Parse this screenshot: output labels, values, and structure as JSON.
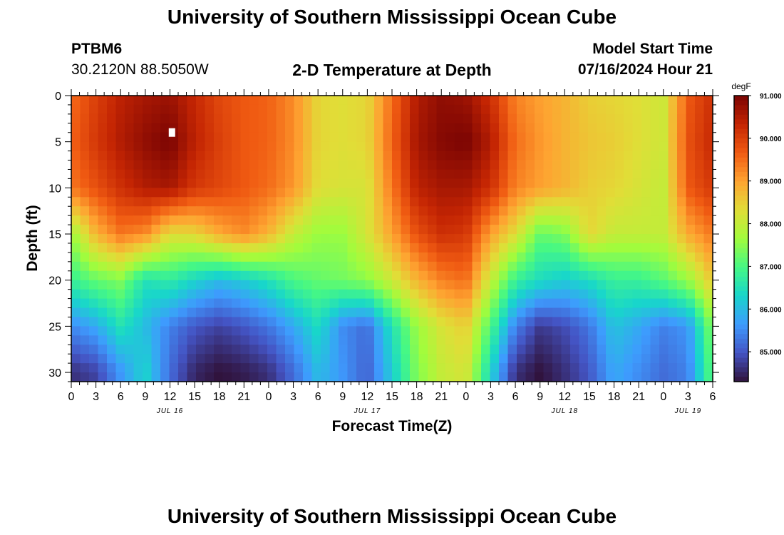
{
  "page": {
    "title_top": "University of Southern Mississippi Ocean Cube",
    "title_bottom": "University of Southern Mississippi Ocean Cube",
    "station_id": "PTBM6",
    "station_coords": "30.2120N  88.5050W",
    "plot_title": "2-D Temperature at Depth",
    "model_start_label": "Model Start Time",
    "model_start_value": "07/16/2024 Hour 21"
  },
  "chart_data": {
    "type": "heatmap",
    "title": "2-D Temperature at Depth",
    "xlabel": "Forecast Time(Z)",
    "ylabel": "Depth (ft)",
    "x_unit": "hours since 07/16/2024 00Z",
    "xlim": [
      0,
      78
    ],
    "ylim": [
      0,
      31
    ],
    "x_ticks": [
      0,
      3,
      6,
      9,
      12,
      15,
      18,
      21,
      24,
      27,
      30,
      33,
      36,
      39,
      42,
      45,
      48,
      51,
      54,
      57,
      60,
      63,
      66,
      69,
      72,
      75,
      78
    ],
    "x_tick_labels": [
      "0",
      "3",
      "6",
      "9",
      "12",
      "15",
      "18",
      "21",
      "0",
      "3",
      "6",
      "9",
      "12",
      "15",
      "18",
      "21",
      "0",
      "3",
      "6",
      "9",
      "12",
      "15",
      "18",
      "21",
      "0",
      "3",
      "6"
    ],
    "date_labels": [
      {
        "x": 12,
        "text": "JUL 16"
      },
      {
        "x": 36,
        "text": "JUL 17"
      },
      {
        "x": 60,
        "text": "JUL 18"
      },
      {
        "x": 75,
        "text": "JUL 19"
      }
    ],
    "y_ticks": [
      0,
      5,
      10,
      15,
      20,
      25,
      30
    ],
    "colorbar": {
      "unit": "degF",
      "vmin": 84.3,
      "vmax": 91.0,
      "ticks": [
        91.0,
        90.0,
        89.0,
        88.0,
        87.0,
        86.0,
        85.0
      ],
      "tick_labels": [
        "91.000",
        "90.000",
        "89.000",
        "88.000",
        "87.000",
        "86.000",
        "85.000"
      ],
      "colors": [
        "#30123b",
        "#4454c4",
        "#3e9bfe",
        "#18d6cb",
        "#46f884",
        "#a2fc3c",
        "#e1dd37",
        "#fea331",
        "#f05b12",
        "#c42503",
        "#7a0403"
      ]
    },
    "depths_ft": [
      0,
      5,
      10,
      15,
      20,
      25,
      30
    ],
    "times_h": [
      0,
      3,
      6,
      9,
      12,
      15,
      18,
      21,
      24,
      27,
      30,
      33,
      36,
      39,
      42,
      45,
      48,
      51,
      54,
      57,
      60,
      63,
      66,
      69,
      72,
      75,
      78
    ],
    "values_degF": [
      [
        89.5,
        90.0,
        90.4,
        90.6,
        90.7,
        90.3,
        89.9,
        89.7,
        89.6,
        89.2,
        88.4,
        88.3,
        88.4,
        89.5,
        90.5,
        90.8,
        90.7,
        90.2,
        89.3,
        89.0,
        88.8,
        88.5,
        88.4,
        88.3,
        88.1,
        89.7,
        90.2
      ],
      [
        89.6,
        90.1,
        90.5,
        90.8,
        91.0,
        90.4,
        90.0,
        89.7,
        89.6,
        89.2,
        88.4,
        88.3,
        88.4,
        89.6,
        90.6,
        90.9,
        91.0,
        90.5,
        89.5,
        89.1,
        88.8,
        88.6,
        88.5,
        88.3,
        88.1,
        89.8,
        90.3
      ],
      [
        89.4,
        89.8,
        90.2,
        90.5,
        90.6,
        90.1,
        89.9,
        89.7,
        89.5,
        89.1,
        88.3,
        88.2,
        88.2,
        89.4,
        90.4,
        90.6,
        90.6,
        90.2,
        89.3,
        89.0,
        88.8,
        88.5,
        88.4,
        88.2,
        88.0,
        89.7,
        90.1
      ],
      [
        87.6,
        88.8,
        89.4,
        89.2,
        88.3,
        88.4,
        88.9,
        89.2,
        88.8,
        88.0,
        87.6,
        87.6,
        88.2,
        89.0,
        89.8,
        90.2,
        90.1,
        89.0,
        88.3,
        87.2,
        87.4,
        88.4,
        88.0,
        88.0,
        88.0,
        88.9,
        89.4
      ],
      [
        86.8,
        87.2,
        87.4,
        86.5,
        86.7,
        86.3,
        86.0,
        86.2,
        86.5,
        87.0,
        87.2,
        87.3,
        87.5,
        88.1,
        88.8,
        89.3,
        89.5,
        88.0,
        86.8,
        86.4,
        86.2,
        86.4,
        86.8,
        86.8,
        87.1,
        87.6,
        88.6
      ],
      [
        85.5,
        85.8,
        86.5,
        86.0,
        85.4,
        85.0,
        84.8,
        85.0,
        85.3,
        85.8,
        86.4,
        85.5,
        85.2,
        86.5,
        87.6,
        88.2,
        88.5,
        87.0,
        85.4,
        84.7,
        84.9,
        85.3,
        86.1,
        85.8,
        85.4,
        85.6,
        87.5
      ],
      [
        84.6,
        84.8,
        85.6,
        86.3,
        85.2,
        84.5,
        84.3,
        84.4,
        84.6,
        85.2,
        86.0,
        85.6,
        85.1,
        86.2,
        87.4,
        88.0,
        88.2,
        86.3,
        84.6,
        84.3,
        84.6,
        85.0,
        85.8,
        85.5,
        85.2,
        85.4,
        87.2
      ]
    ],
    "annotations": [
      {
        "type": "marker",
        "x": 12.2,
        "y": 4.0,
        "color": "#ffffff"
      }
    ]
  }
}
